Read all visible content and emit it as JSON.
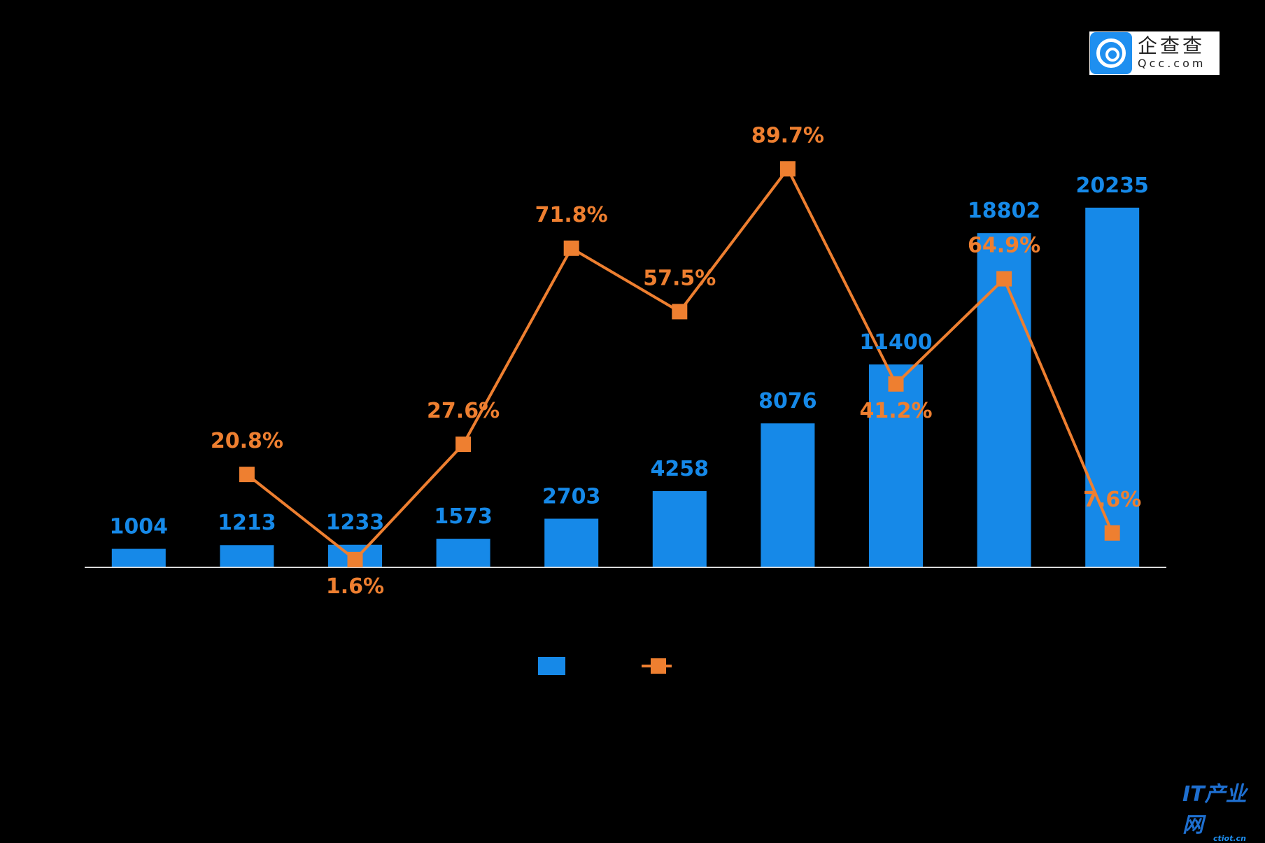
{
  "chart_data": {
    "type": "bar+line",
    "categories": [
      "",
      "",
      "",
      "",
      "",
      "",
      "",
      "",
      "",
      ""
    ],
    "series": [
      {
        "name": "",
        "type": "bar",
        "axis": "left",
        "color": "#1689e8",
        "values": [
          1004,
          1213,
          1233,
          1573,
          2703,
          4258,
          8076,
          11400,
          18802,
          20235
        ],
        "labels": [
          "1004",
          "1213",
          "1233",
          "1573",
          "2703",
          "4258",
          "8076",
          "11400",
          "18802",
          "20235"
        ]
      },
      {
        "name": "",
        "type": "line",
        "axis": "right",
        "color": "#ee7f30",
        "values": [
          null,
          20.8,
          1.6,
          27.6,
          71.8,
          57.5,
          89.7,
          41.2,
          64.9,
          7.6
        ],
        "labels": [
          "",
          "20.8%",
          "1.6%",
          "27.6%",
          "71.8%",
          "57.5%",
          "89.7%",
          "41.2%",
          "64.9%",
          "7.6%"
        ]
      }
    ],
    "ylim": [
      0,
      25000
    ],
    "y2lim": [
      0,
      100
    ],
    "grid": false,
    "legend": "bottom"
  },
  "logo": {
    "cn": "企查查",
    "en": "Qcc.com"
  },
  "watermark": {
    "cn": "IT产业网",
    "en": "ctiot.cn"
  }
}
